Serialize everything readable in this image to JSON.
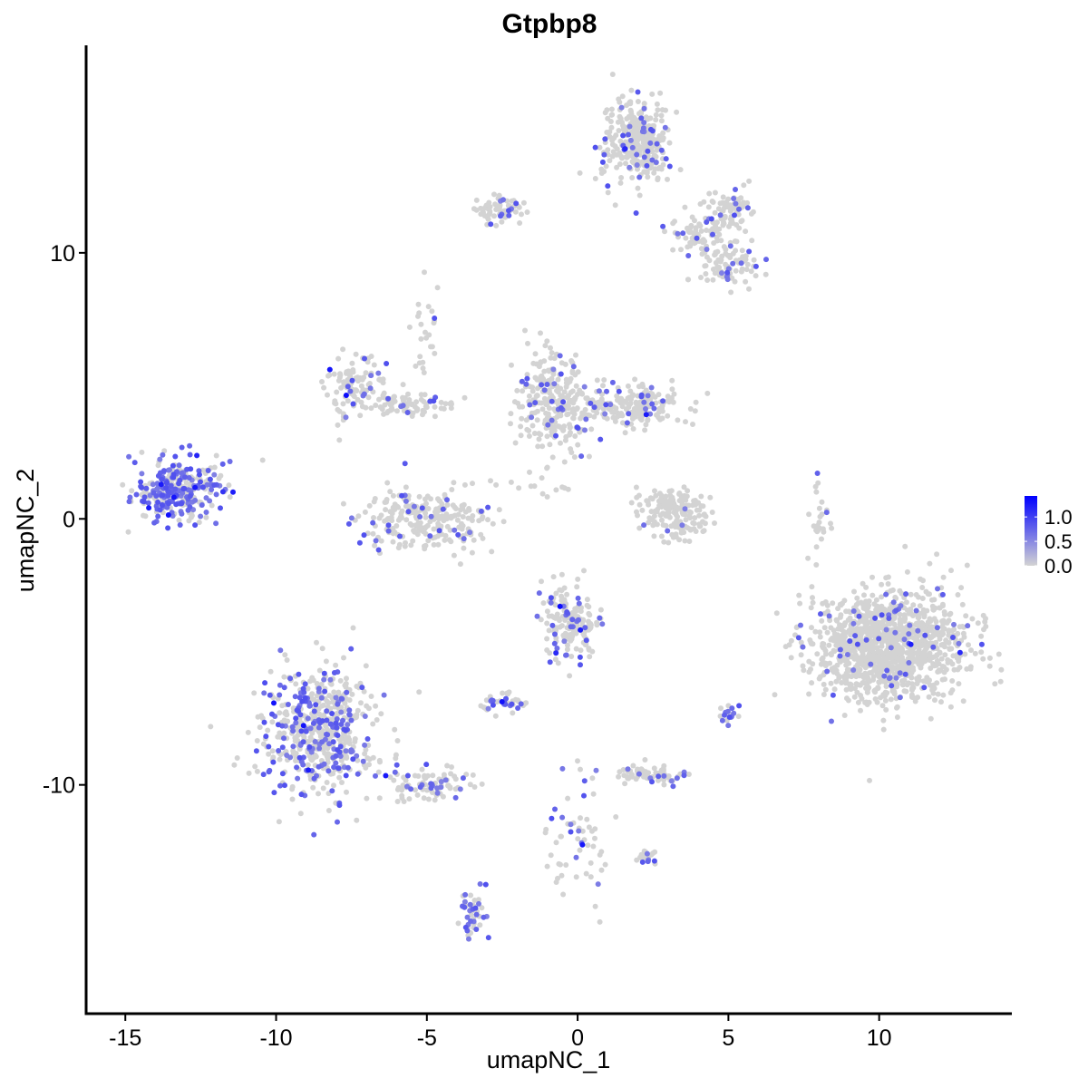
{
  "chart_data": {
    "type": "scatter",
    "title": "Gtpbp8",
    "xlabel": "umapNC_1",
    "ylabel": "umapNC_2",
    "xlim": [
      -16.3,
      14.4
    ],
    "ylim": [
      -18.6,
      17.8
    ],
    "xticks": [
      -15,
      -10,
      -5,
      0,
      5,
      10
    ],
    "xtick_labels": [
      "-15",
      "-10",
      "-5",
      "0",
      "5",
      "10"
    ],
    "yticks": [
      -10,
      0,
      10
    ],
    "ytick_labels": [
      "-10",
      "0",
      "10"
    ],
    "grid": false,
    "colorbar": {
      "position": "right",
      "low_color": "#d3d3d3",
      "high_color": "#0000ff",
      "range": [
        0,
        1.43
      ],
      "ticks": [
        0.0,
        0.5,
        1.0
      ],
      "tick_labels": [
        "0.0",
        "0.5",
        "1.0"
      ]
    },
    "clusters": [
      {
        "center": [
          -13.3,
          1.1
        ],
        "spread": [
          0.75,
          0.55
        ],
        "n": 330,
        "expr_frac": 0.5
      },
      {
        "center": [
          -8.6,
          -8.0
        ],
        "spread": [
          0.95,
          1.2
        ],
        "n": 560,
        "expr_frac": 0.3
      },
      {
        "center": [
          -5.0,
          -10.0
        ],
        "spread": [
          0.7,
          0.4
        ],
        "n": 90,
        "expr_frac": 0.25
      },
      {
        "center": [
          1.9,
          14.2
        ],
        "spread": [
          0.55,
          0.8
        ],
        "n": 330,
        "expr_frac": 0.12
      },
      {
        "center": [
          -2.5,
          11.6
        ],
        "spread": [
          0.5,
          0.25
        ],
        "n": 70,
        "expr_frac": 0.1
      },
      {
        "center": [
          4.3,
          10.8
        ],
        "spread": [
          0.6,
          0.6
        ],
        "n": 110,
        "expr_frac": 0.1
      },
      {
        "center": [
          5.0,
          9.4
        ],
        "spread": [
          0.5,
          0.35
        ],
        "n": 70,
        "expr_frac": 0.12
      },
      {
        "center": [
          5.2,
          11.7
        ],
        "spread": [
          0.4,
          0.3
        ],
        "n": 50,
        "expr_frac": 0.05
      },
      {
        "center": [
          -7.4,
          5.0
        ],
        "spread": [
          0.45,
          0.6
        ],
        "n": 110,
        "expr_frac": 0.15
      },
      {
        "center": [
          -5.6,
          4.3
        ],
        "spread": [
          0.8,
          0.2
        ],
        "n": 80,
        "expr_frac": 0.08
      },
      {
        "center": [
          -5.1,
          0.0
        ],
        "spread": [
          1.1,
          0.55
        ],
        "n": 260,
        "expr_frac": 0.12
      },
      {
        "center": [
          -0.8,
          4.4
        ],
        "spread": [
          0.6,
          0.9
        ],
        "n": 260,
        "expr_frac": 0.12
      },
      {
        "center": [
          1.8,
          4.2
        ],
        "spread": [
          0.9,
          0.4
        ],
        "n": 200,
        "expr_frac": 0.1
      },
      {
        "center": [
          3.2,
          0.2
        ],
        "spread": [
          0.55,
          0.5
        ],
        "n": 170,
        "expr_frac": 0.02
      },
      {
        "center": [
          10.4,
          -4.8
        ],
        "spread": [
          1.25,
          1.05
        ],
        "n": 1200,
        "expr_frac": 0.05
      },
      {
        "center": [
          -0.3,
          -3.9
        ],
        "spread": [
          0.45,
          0.7
        ],
        "n": 170,
        "expr_frac": 0.2
      },
      {
        "center": [
          -2.5,
          -6.9
        ],
        "spread": [
          0.3,
          0.2
        ],
        "n": 40,
        "expr_frac": 0.3
      },
      {
        "center": [
          2.4,
          -9.6
        ],
        "spread": [
          0.5,
          0.2
        ],
        "n": 70,
        "expr_frac": 0.15
      },
      {
        "center": [
          -3.5,
          -14.7
        ],
        "spread": [
          0.2,
          0.5
        ],
        "n": 45,
        "expr_frac": 0.5
      },
      {
        "center": [
          0.0,
          -11.8
        ],
        "spread": [
          0.5,
          1.2
        ],
        "n": 60,
        "expr_frac": 0.15
      },
      {
        "center": [
          2.3,
          -12.7
        ],
        "spread": [
          0.2,
          0.15
        ],
        "n": 20,
        "expr_frac": 0.3
      },
      {
        "center": [
          5.0,
          -7.3
        ],
        "spread": [
          0.15,
          0.2
        ],
        "n": 18,
        "expr_frac": 0.5
      },
      {
        "center": [
          8.0,
          -0.1
        ],
        "spread": [
          0.15,
          0.7
        ],
        "n": 25,
        "expr_frac": 0.05
      },
      {
        "center": [
          -5.0,
          7.0
        ],
        "spread": [
          0.2,
          1.2
        ],
        "n": 25,
        "expr_frac": 0.1
      },
      {
        "center": [
          -1.5,
          1.3
        ],
        "spread": [
          0.6,
          0.3
        ],
        "n": 15,
        "expr_frac": 0.0
      }
    ]
  }
}
